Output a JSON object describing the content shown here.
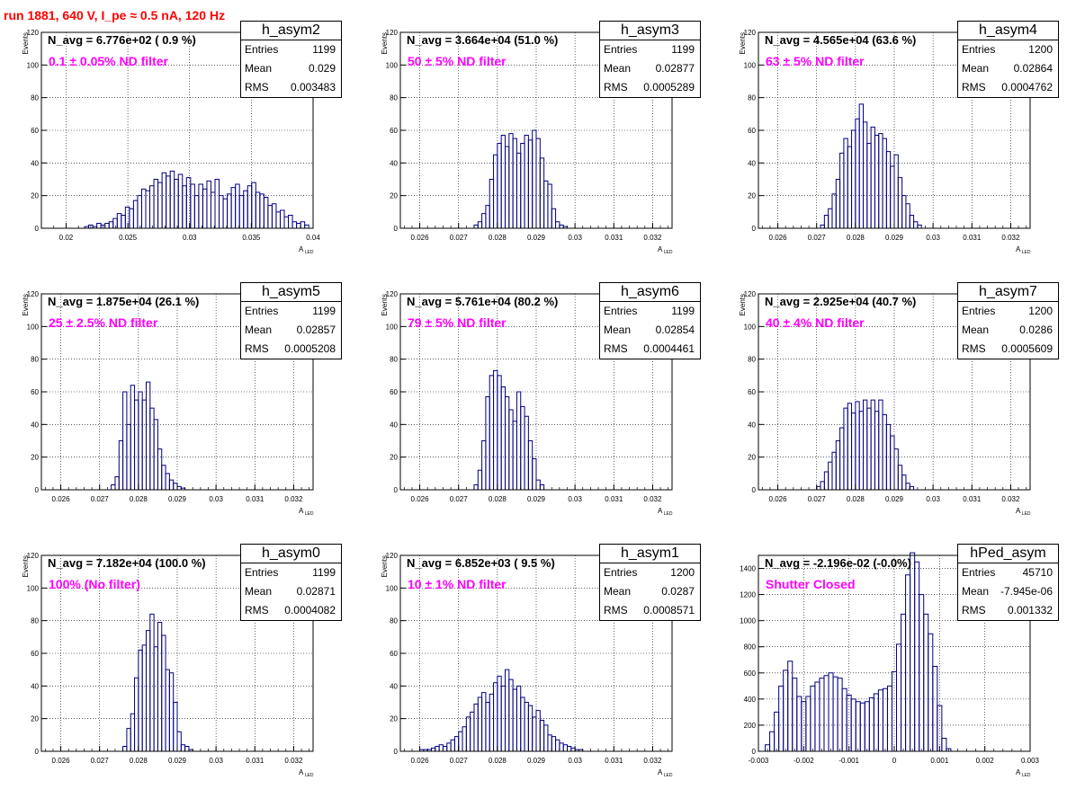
{
  "run_title": "run 1881,   640 V, I_pe ≈ 0.5 nA, 120 Hz",
  "stat_labels": {
    "entries": "Entries",
    "mean": "Mean",
    "rms": "RMS"
  },
  "colors": {
    "title": "#ff0000",
    "annotation": "#ff00ff",
    "histogram": "#000080",
    "grid": "#000000"
  },
  "panels": [
    {
      "id": "h_asym2",
      "name": "h_asym2",
      "navg": "N_avg = 6.776e+02 ( 0.9 %)",
      "filter": "0.1 ± 0.05% ND filter",
      "entries": "1199",
      "mean": "0.029",
      "rms": "0.003483"
    },
    {
      "id": "h_asym3",
      "name": "h_asym3",
      "navg": "N_avg = 3.664e+04 (51.0 %)",
      "filter": "50 ± 5% ND filter",
      "entries": "1199",
      "mean": "0.02877",
      "rms": "0.0005289"
    },
    {
      "id": "h_asym4",
      "name": "h_asym4",
      "navg": "N_avg = 4.565e+04 (63.6 %)",
      "filter": "63 ± 5% ND filter",
      "entries": "1200",
      "mean": "0.02864",
      "rms": "0.0004762"
    },
    {
      "id": "h_asym5",
      "name": "h_asym5",
      "navg": "N_avg = 1.875e+04 (26.1 %)",
      "filter": "25 ± 2.5% ND filter",
      "entries": "1199",
      "mean": "0.02857",
      "rms": "0.0005208"
    },
    {
      "id": "h_asym6",
      "name": "h_asym6",
      "navg": "N_avg = 5.761e+04 (80.2 %)",
      "filter": "79 ± 5% ND filter",
      "entries": "1199",
      "mean": "0.02854",
      "rms": "0.0004461"
    },
    {
      "id": "h_asym7",
      "name": "h_asym7",
      "navg": "N_avg = 2.925e+04 (40.7 %)",
      "filter": "40 ± 4% ND filter",
      "entries": "1200",
      "mean": "0.0286",
      "rms": "0.0005609"
    },
    {
      "id": "h_asym0",
      "name": "h_asym0",
      "navg": "N_avg = 7.182e+04 (100.0 %)",
      "filter": "100% (No filter)",
      "entries": "1199",
      "mean": "0.02871",
      "rms": "0.0004082"
    },
    {
      "id": "h_asym1",
      "name": "h_asym1",
      "navg": "N_avg = 6.852e+03 ( 9.5 %)",
      "filter": "10 ± 1% ND filter",
      "entries": "1200",
      "mean": "0.0287",
      "rms": "0.0008571"
    },
    {
      "id": "hPed_asym",
      "name": "hPed_asym",
      "navg": "N_avg = -2.196e-02 (-0.0%)",
      "filter": "Shutter Closed",
      "entries": "45710",
      "mean": "-7.945e-06",
      "rms": "0.001332"
    }
  ],
  "chart_data": [
    {
      "type": "bar",
      "name": "h_asym2",
      "xlabel": "A",
      "xlabel_sub": "LED",
      "ylabel": "Events",
      "xlim": [
        0.018,
        0.04
      ],
      "ylim": [
        0,
        120
      ],
      "xticks": [
        0.02,
        0.025,
        0.03,
        0.035,
        0.04
      ],
      "xtick_labels": [
        "0.02",
        "0.025",
        "0.03",
        "0.035",
        "0.04"
      ],
      "yticks": [
        0,
        20,
        40,
        60,
        80,
        100,
        120
      ],
      "ytick_labels": [
        "0",
        "20",
        "40",
        "60",
        "80",
        "100",
        "120"
      ],
      "grid": true,
      "bin_start": 0.0215,
      "bin_width": 0.00033,
      "values": [
        1,
        2,
        1,
        3,
        2,
        3,
        4,
        6,
        9,
        8,
        13,
        12,
        17,
        20,
        24,
        23,
        26,
        30,
        28,
        34,
        32,
        35,
        30,
        33,
        26,
        31,
        27,
        20,
        27,
        24,
        29,
        22,
        30,
        20,
        18,
        21,
        25,
        27,
        20,
        23,
        26,
        28,
        22,
        21,
        19,
        14,
        15,
        10,
        11,
        7,
        8,
        4,
        3,
        4,
        2
      ]
    },
    {
      "type": "bar",
      "name": "h_asym3",
      "xlabel": "A",
      "xlabel_sub": "LED",
      "ylabel": "Events",
      "xlim": [
        0.0255,
        0.0325
      ],
      "ylim": [
        0,
        120
      ],
      "xticks": [
        0.026,
        0.027,
        0.028,
        0.029,
        0.03,
        0.031,
        0.032
      ],
      "xtick_labels": [
        "0.026",
        "0.027",
        "0.028",
        "0.029",
        "0.03",
        "0.031",
        "0.032"
      ],
      "yticks": [
        0,
        20,
        40,
        60,
        80,
        100,
        120
      ],
      "ytick_labels": [
        "0",
        "20",
        "40",
        "60",
        "80",
        "100",
        "120"
      ],
      "grid": true,
      "bin_start": 0.0274,
      "bin_width": 0.0001,
      "values": [
        2,
        4,
        9,
        14,
        30,
        45,
        52,
        57,
        50,
        58,
        55,
        46,
        52,
        57,
        54,
        60,
        55,
        43,
        29,
        27,
        12,
        4,
        2,
        1
      ]
    },
    {
      "type": "bar",
      "name": "h_asym4",
      "xlabel": "A",
      "xlabel_sub": "LED",
      "ylabel": "Events",
      "xlim": [
        0.0255,
        0.0325
      ],
      "ylim": [
        0,
        120
      ],
      "xticks": [
        0.026,
        0.027,
        0.028,
        0.029,
        0.03,
        0.031,
        0.032
      ],
      "xtick_labels": [
        "0.026",
        "0.027",
        "0.028",
        "0.029",
        "0.03",
        "0.031",
        "0.032"
      ],
      "yticks": [
        0,
        20,
        40,
        60,
        80,
        100,
        120
      ],
      "ytick_labels": [
        "0",
        "20",
        "40",
        "60",
        "80",
        "100",
        "120"
      ],
      "grid": true,
      "bin_start": 0.0271,
      "bin_width": 0.0001,
      "values": [
        2,
        8,
        12,
        21,
        30,
        46,
        55,
        50,
        60,
        67,
        76,
        65,
        52,
        62,
        57,
        58,
        55,
        47,
        38,
        45,
        31,
        20,
        15,
        8,
        4,
        2
      ]
    },
    {
      "type": "bar",
      "name": "h_asym5",
      "xlabel": "A",
      "xlabel_sub": "LED",
      "ylabel": "Events",
      "xlim": [
        0.0255,
        0.0325
      ],
      "ylim": [
        0,
        120
      ],
      "xticks": [
        0.026,
        0.027,
        0.028,
        0.029,
        0.03,
        0.031,
        0.032
      ],
      "xtick_labels": [
        "0.026",
        "0.027",
        "0.028",
        "0.029",
        "0.03",
        "0.031",
        "0.032"
      ],
      "yticks": [
        0,
        20,
        40,
        60,
        80,
        100,
        120
      ],
      "ytick_labels": [
        "0",
        "20",
        "40",
        "60",
        "80",
        "100",
        "120"
      ],
      "grid": true,
      "bin_start": 0.0273,
      "bin_width": 0.0001,
      "values": [
        3,
        8,
        30,
        60,
        40,
        64,
        55,
        60,
        55,
        66,
        50,
        43,
        25,
        15,
        10,
        6,
        4,
        2,
        1
      ]
    },
    {
      "type": "bar",
      "name": "h_asym6",
      "xlabel": "A",
      "xlabel_sub": "LED",
      "ylabel": "Events",
      "xlim": [
        0.0255,
        0.0325
      ],
      "ylim": [
        0,
        120
      ],
      "xticks": [
        0.026,
        0.027,
        0.028,
        0.029,
        0.03,
        0.031,
        0.032
      ],
      "xtick_labels": [
        "0.026",
        "0.027",
        "0.028",
        "0.029",
        "0.03",
        "0.031",
        "0.032"
      ],
      "yticks": [
        0,
        20,
        40,
        60,
        80,
        100,
        120
      ],
      "ytick_labels": [
        "0",
        "20",
        "40",
        "60",
        "80",
        "100",
        "120"
      ],
      "grid": true,
      "bin_start": 0.0274,
      "bin_width": 0.0001,
      "values": [
        3,
        12,
        30,
        57,
        70,
        73,
        70,
        63,
        57,
        49,
        42,
        60,
        51,
        45,
        30,
        19,
        6,
        3
      ]
    },
    {
      "type": "bar",
      "name": "h_asym7",
      "xlabel": "A",
      "xlabel_sub": "LED",
      "ylabel": "Events",
      "xlim": [
        0.0255,
        0.0325
      ],
      "ylim": [
        0,
        120
      ],
      "xticks": [
        0.026,
        0.027,
        0.028,
        0.029,
        0.03,
        0.031,
        0.032
      ],
      "xtick_labels": [
        "0.026",
        "0.027",
        "0.028",
        "0.029",
        "0.03",
        "0.031",
        "0.032"
      ],
      "yticks": [
        0,
        20,
        40,
        60,
        80,
        100,
        120
      ],
      "ytick_labels": [
        "0",
        "20",
        "40",
        "60",
        "80",
        "100",
        "120"
      ],
      "grid": true,
      "bin_start": 0.027,
      "bin_width": 0.0001,
      "values": [
        2,
        5,
        11,
        17,
        23,
        30,
        38,
        50,
        53,
        47,
        54,
        48,
        55,
        50,
        55,
        48,
        55,
        46,
        40,
        33,
        25,
        15,
        9,
        4,
        2
      ]
    },
    {
      "type": "bar",
      "name": "h_asym0",
      "xlabel": "A",
      "xlabel_sub": "LED",
      "ylabel": "Events",
      "xlim": [
        0.0255,
        0.0325
      ],
      "ylim": [
        0,
        120
      ],
      "xticks": [
        0.026,
        0.027,
        0.028,
        0.029,
        0.03,
        0.031,
        0.032
      ],
      "xtick_labels": [
        "0.026",
        "0.027",
        "0.028",
        "0.029",
        "0.03",
        "0.031",
        "0.032"
      ],
      "yticks": [
        0,
        20,
        40,
        60,
        80,
        100,
        120
      ],
      "ytick_labels": [
        "0",
        "20",
        "40",
        "60",
        "80",
        "100",
        "120"
      ],
      "grid": true,
      "bin_start": 0.0276,
      "bin_width": 0.0001,
      "values": [
        3,
        14,
        23,
        45,
        62,
        65,
        74,
        84,
        64,
        79,
        71,
        50,
        48,
        30,
        12,
        4,
        3,
        1
      ]
    },
    {
      "type": "bar",
      "name": "h_asym1",
      "xlabel": "A",
      "xlabel_sub": "LED",
      "ylabel": "Events",
      "xlim": [
        0.0255,
        0.0325
      ],
      "ylim": [
        0,
        120
      ],
      "xticks": [
        0.026,
        0.027,
        0.028,
        0.029,
        0.03,
        0.031,
        0.032
      ],
      "xtick_labels": [
        "0.026",
        "0.027",
        "0.028",
        "0.029",
        "0.03",
        "0.031",
        "0.032"
      ],
      "yticks": [
        0,
        20,
        40,
        60,
        80,
        100,
        120
      ],
      "ytick_labels": [
        "0",
        "20",
        "40",
        "60",
        "80",
        "100",
        "120"
      ],
      "grid": true,
      "bin_start": 0.026,
      "bin_width": 0.0001,
      "values": [
        1,
        1,
        1,
        2,
        3,
        4,
        3,
        5,
        7,
        9,
        12,
        15,
        21,
        24,
        29,
        33,
        36,
        30,
        35,
        42,
        46,
        40,
        50,
        44,
        38,
        40,
        33,
        30,
        28,
        21,
        25,
        19,
        16,
        10,
        9,
        7,
        5,
        4,
        3,
        2,
        1,
        1
      ]
    },
    {
      "type": "bar",
      "name": "hPed_asym",
      "xlabel": "A",
      "xlabel_sub": "LED",
      "ylabel": "",
      "xlim": [
        -0.003,
        0.003
      ],
      "ylim": [
        0,
        1500
      ],
      "xticks": [
        -0.003,
        -0.002,
        -0.001,
        0,
        0.001,
        0.002,
        0.003
      ],
      "xtick_labels": [
        "-0.003",
        "-0.002",
        "-0.001",
        "0",
        "0.001",
        "0.002",
        "0.003"
      ],
      "yticks": [
        0,
        200,
        400,
        600,
        800,
        1000,
        1200,
        1400
      ],
      "ytick_labels": [
        "0",
        "200",
        "400",
        "600",
        "800",
        "1000",
        "1200",
        "1400"
      ],
      "grid": true,
      "bin_start": -0.00285,
      "bin_width": 0.0001,
      "values": [
        50,
        150,
        300,
        500,
        620,
        690,
        560,
        420,
        380,
        420,
        500,
        530,
        560,
        580,
        600,
        570,
        560,
        480,
        430,
        400,
        380,
        370,
        380,
        410,
        440,
        470,
        480,
        500,
        610,
        820,
        1050,
        1350,
        1520,
        1450,
        1200,
        1050,
        900,
        650,
        350,
        100,
        20
      ]
    }
  ]
}
